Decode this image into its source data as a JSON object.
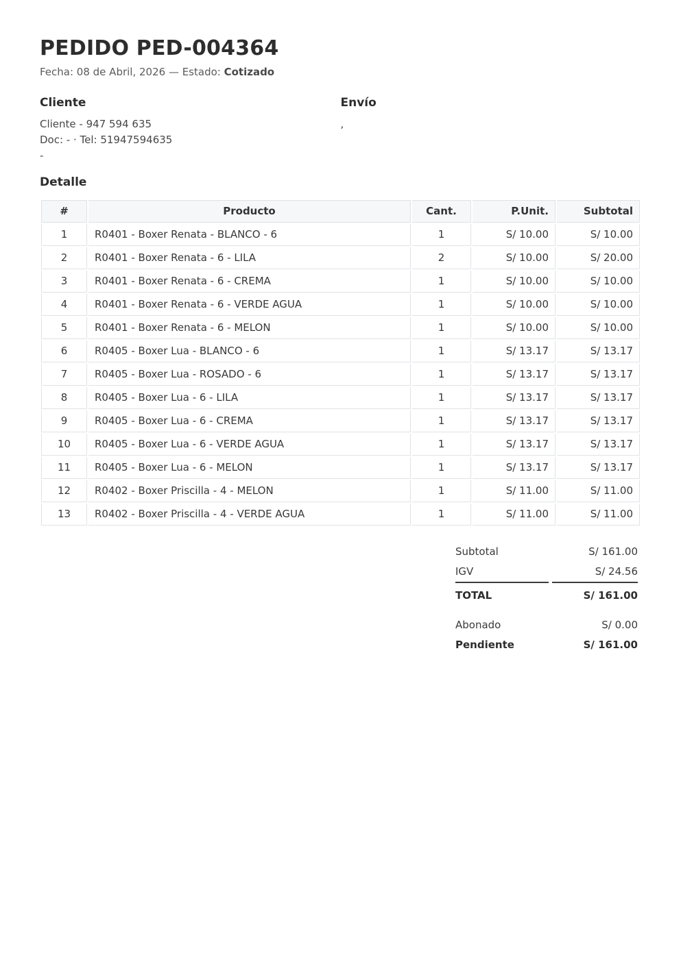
{
  "header": {
    "title": "PEDIDO PED-004364",
    "meta_prefix": "Fecha: 08 de Abril, 2026 — Estado: ",
    "estado": "Cotizado"
  },
  "cliente": {
    "heading": "Cliente",
    "lines": {
      "0": "Cliente - 947 594 635",
      "1": "Doc: - · Tel: 51947594635",
      "2": "-"
    }
  },
  "envio": {
    "heading": "Envío",
    "lines": {
      "0": ","
    }
  },
  "detalle": {
    "heading": "Detalle",
    "columns": {
      "num": "#",
      "producto": "Producto",
      "cant": "Cant.",
      "punit": "P.Unit.",
      "subtotal": "Subtotal"
    },
    "rows": [
      [
        "1",
        "R0401 - Boxer Renata - BLANCO - 6",
        "1",
        "S/ 10.00",
        "S/ 10.00"
      ],
      [
        "2",
        "R0401 - Boxer Renata - 6 - LILA",
        "2",
        "S/ 10.00",
        "S/ 20.00"
      ],
      [
        "3",
        "R0401 - Boxer Renata - 6 - CREMA",
        "1",
        "S/ 10.00",
        "S/ 10.00"
      ],
      [
        "4",
        "R0401 - Boxer Renata - 6 - VERDE AGUA",
        "1",
        "S/ 10.00",
        "S/ 10.00"
      ],
      [
        "5",
        "R0401 - Boxer Renata - 6 - MELON",
        "1",
        "S/ 10.00",
        "S/ 10.00"
      ],
      [
        "6",
        "R0405 - Boxer Lua - BLANCO - 6",
        "1",
        "S/ 13.17",
        "S/ 13.17"
      ],
      [
        "7",
        "R0405 - Boxer Lua - ROSADO - 6",
        "1",
        "S/ 13.17",
        "S/ 13.17"
      ],
      [
        "8",
        "R0405 - Boxer Lua - 6 - LILA",
        "1",
        "S/ 13.17",
        "S/ 13.17"
      ],
      [
        "9",
        "R0405 - Boxer Lua - 6 - CREMA",
        "1",
        "S/ 13.17",
        "S/ 13.17"
      ],
      [
        "10",
        "R0405 - Boxer Lua - 6 - VERDE AGUA",
        "1",
        "S/ 13.17",
        "S/ 13.17"
      ],
      [
        "11",
        "R0405 - Boxer Lua - 6 - MELON",
        "1",
        "S/ 13.17",
        "S/ 13.17"
      ],
      [
        "12",
        "R0402 - Boxer Priscilla - 4 - MELON",
        "1",
        "S/ 11.00",
        "S/ 11.00"
      ],
      [
        "13",
        "R0402 - Boxer Priscilla - 4 - VERDE AGUA",
        "1",
        "S/ 11.00",
        "S/ 11.00"
      ]
    ]
  },
  "totales": {
    "subtotal_label": "Subtotal",
    "subtotal": "S/ 161.00",
    "igv_label": "IGV",
    "igv": "S/ 24.56",
    "total_label": "TOTAL",
    "total": "S/ 161.00",
    "abonado_label": "Abonado",
    "abonado": "S/ 0.00",
    "pendiente_label": "Pendiente",
    "pendiente": "S/ 161.00"
  },
  "colors": {
    "table_border": "#dfe2e5",
    "table_header_bg": "#f6f7f8",
    "text_dark": "#2d2d2d",
    "text_muted": "#5b5b5b",
    "totals_rule": "#3c3c3c"
  }
}
